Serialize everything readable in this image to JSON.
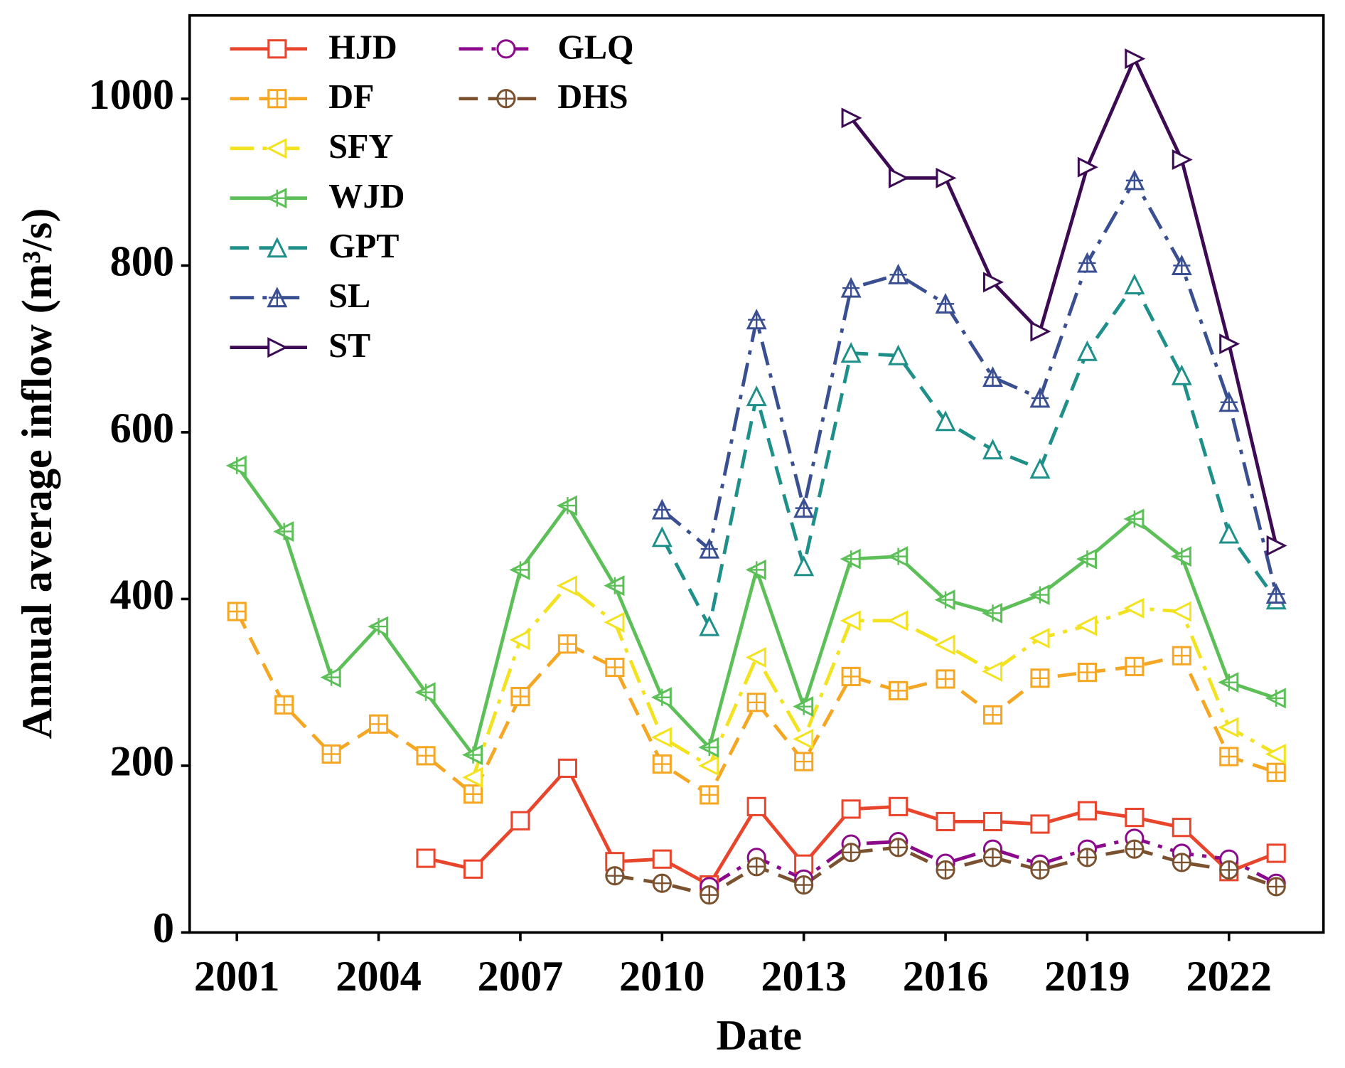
{
  "chart_data": {
    "type": "line",
    "x_label": "Date",
    "y_label": "Annual average inflow (m³/s)",
    "x": [
      2001,
      2002,
      2003,
      2004,
      2005,
      2006,
      2007,
      2008,
      2009,
      2010,
      2011,
      2012,
      2013,
      2014,
      2015,
      2016,
      2017,
      2018,
      2019,
      2020,
      2021,
      2022,
      2023
    ],
    "xlim": [
      2000,
      2024
    ],
    "xticks": [
      2001,
      2004,
      2007,
      2010,
      2013,
      2016,
      2019,
      2022
    ],
    "ylim": [
      0,
      1100
    ],
    "yticks": [
      0,
      200,
      400,
      600,
      800,
      1000
    ],
    "series": [
      {
        "name": "HJD",
        "color": "#e8452c",
        "marker": "square",
        "dash": "solid",
        "values": [
          null,
          null,
          null,
          null,
          89,
          76,
          134,
          197,
          85,
          88,
          57,
          151,
          82,
          148,
          151,
          133,
          133,
          130,
          146,
          138,
          126,
          73,
          95
        ]
      },
      {
        "name": "DF",
        "color": "#f5a623",
        "marker": "square-cross",
        "dash": "dash",
        "values": [
          385,
          273,
          214,
          250,
          212,
          166,
          283,
          346,
          318,
          202,
          165,
          276,
          205,
          307,
          290,
          304,
          261,
          305,
          312,
          319,
          332,
          211,
          192
        ]
      },
      {
        "name": "SFY",
        "color": "#f3e21f",
        "marker": "tri-left",
        "dash": "dashdot",
        "values": [
          null,
          null,
          null,
          null,
          null,
          186,
          351,
          416,
          372,
          234,
          200,
          330,
          232,
          374,
          374,
          345,
          313,
          353,
          368,
          389,
          385,
          246,
          214
        ]
      },
      {
        "name": "WJD",
        "color": "#5cbf58",
        "marker": "tri-left-cross",
        "dash": "solid",
        "values": [
          560,
          481,
          306,
          367,
          288,
          213,
          435,
          512,
          416,
          282,
          222,
          435,
          271,
          448,
          451,
          399,
          383,
          405,
          448,
          496,
          451,
          300,
          281
        ]
      },
      {
        "name": "GPT",
        "color": "#1f8f8a",
        "marker": "tri-up",
        "dash": "dash",
        "values": [
          null,
          null,
          null,
          null,
          null,
          null,
          null,
          null,
          null,
          474,
          367,
          643,
          439,
          695,
          692,
          613,
          579,
          556,
          697,
          777,
          668,
          478,
          399
        ]
      },
      {
        "name": "SL",
        "color": "#3a4f91",
        "marker": "tri-up-cross",
        "dash": "dashdot",
        "values": [
          null,
          null,
          null,
          null,
          null,
          null,
          null,
          null,
          null,
          507,
          460,
          735,
          509,
          773,
          789,
          754,
          666,
          641,
          803,
          902,
          800,
          636,
          406
        ]
      },
      {
        "name": "ST",
        "color": "#3d0b53",
        "marker": "tri-right",
        "dash": "solid",
        "values": [
          null,
          null,
          null,
          null,
          null,
          null,
          null,
          null,
          null,
          null,
          null,
          null,
          null,
          977,
          905,
          905,
          780,
          721,
          918,
          1048,
          927,
          706,
          464
        ]
      },
      {
        "name": "GLQ",
        "color": "#8b0a8b",
        "marker": "circle",
        "dash": "dashdot",
        "values": [
          null,
          null,
          null,
          null,
          null,
          null,
          null,
          null,
          null,
          null,
          55,
          90,
          64,
          106,
          109,
          83,
          100,
          82,
          100,
          113,
          95,
          88,
          59
        ]
      },
      {
        "name": "DHS",
        "color": "#7a5230",
        "marker": "circle-cross",
        "dash": "dash",
        "values": [
          null,
          null,
          null,
          null,
          null,
          null,
          null,
          null,
          68,
          59,
          45,
          79,
          57,
          96,
          102,
          75,
          90,
          75,
          90,
          100,
          84,
          75,
          55
        ]
      }
    ]
  }
}
